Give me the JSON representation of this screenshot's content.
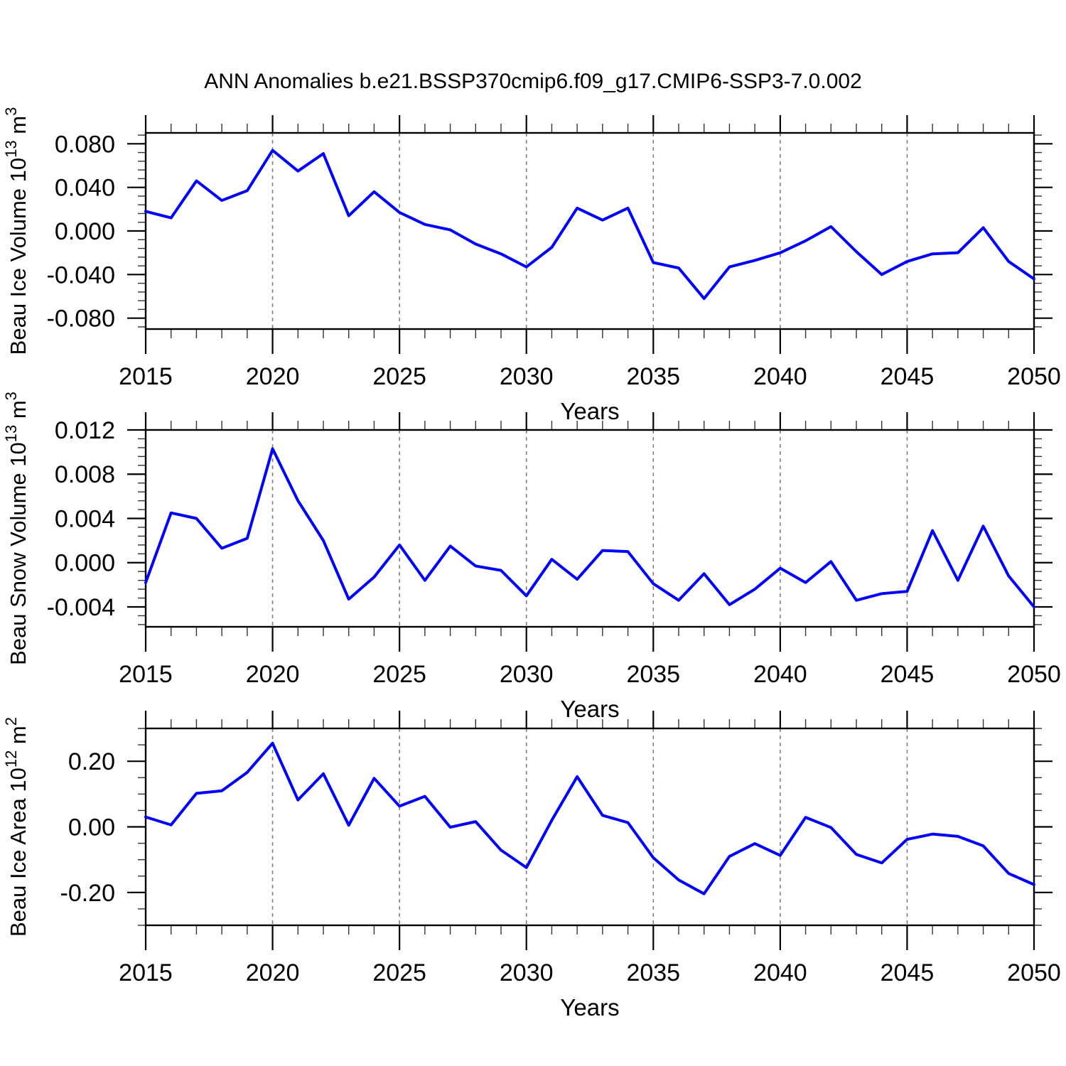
{
  "title": "ANN Anomalies b.e21.BSSP370cmip6.f09_g17.CMIP6-SSP3-7.0.002",
  "colors": {
    "line": "#0000ff",
    "grid": "#7f7f7f",
    "axis": "#000000",
    "minor_tick": "#333333",
    "background": "#ffffff"
  },
  "x_axis": {
    "label": "Years",
    "start": 2015,
    "end": 2050,
    "major_step": 5,
    "minor_step": 1,
    "tick_labels": [
      "2015",
      "2020",
      "2025",
      "2030",
      "2035",
      "2040",
      "2045",
      "2050"
    ],
    "grid_years": [
      2020,
      2025,
      2030,
      2035,
      2040,
      2045
    ]
  },
  "chart_data": [
    {
      "type": "line",
      "name": "ice-volume",
      "ylabel": {
        "text": "Beau Ice Volume",
        "factor": "10",
        "factor_exp": "13",
        "unit": "m",
        "unit_exp": "3"
      },
      "ylabel_display": "Beau Ice Volume 10¹³ m³",
      "xlabel": "Years",
      "ylim": [
        -0.09,
        0.09
      ],
      "y_tick_values": [
        0.08,
        0.04,
        0.0,
        -0.04,
        -0.08
      ],
      "y_tick_labels": [
        "0.080",
        "0.040",
        "0.000",
        "-0.040",
        "-0.080"
      ],
      "y_minor_step": 0.008,
      "grid": "vertical-dashed",
      "legend": "none",
      "years": [
        2015,
        2016,
        2017,
        2018,
        2019,
        2020,
        2021,
        2022,
        2023,
        2024,
        2025,
        2026,
        2027,
        2028,
        2029,
        2030,
        2031,
        2032,
        2033,
        2034,
        2035,
        2036,
        2037,
        2038,
        2039,
        2040,
        2041,
        2042,
        2043,
        2044,
        2045,
        2046,
        2047,
        2048,
        2049,
        2050
      ],
      "values": [
        0.018,
        0.012,
        0.046,
        0.028,
        0.037,
        0.074,
        0.055,
        0.071,
        0.014,
        0.036,
        0.017,
        0.006,
        0.001,
        -0.012,
        -0.021,
        -0.033,
        -0.015,
        0.021,
        0.01,
        0.021,
        -0.029,
        -0.034,
        -0.062,
        -0.033,
        -0.027,
        -0.02,
        -0.009,
        0.004,
        -0.019,
        -0.04,
        -0.028,
        -0.021,
        -0.02,
        0.003,
        -0.028,
        -0.044
      ]
    },
    {
      "type": "line",
      "name": "snow-volume",
      "ylabel": {
        "text": "Beau Snow Volume",
        "factor": "10",
        "factor_exp": "13",
        "unit": "m",
        "unit_exp": "3"
      },
      "ylabel_display": "Beau Snow Volume 10¹³ m³",
      "xlabel": "Years",
      "ylim": [
        -0.0058,
        0.012
      ],
      "y_tick_values": [
        0.012,
        0.008,
        0.004,
        0.0,
        -0.004
      ],
      "y_tick_labels": [
        "0.012",
        "0.008",
        "0.004",
        "0.000",
        "-0.004"
      ],
      "y_minor_step": 0.0008,
      "grid": "vertical-dashed",
      "legend": "none",
      "years": [
        2015,
        2016,
        2017,
        2018,
        2019,
        2020,
        2021,
        2022,
        2023,
        2024,
        2025,
        2026,
        2027,
        2028,
        2029,
        2030,
        2031,
        2032,
        2033,
        2034,
        2035,
        2036,
        2037,
        2038,
        2039,
        2040,
        2041,
        2042,
        2043,
        2044,
        2045,
        2046,
        2047,
        2048,
        2049,
        2050
      ],
      "values": [
        -0.0018,
        0.0045,
        0.004,
        0.0013,
        0.0022,
        0.0103,
        0.0056,
        0.002,
        -0.0033,
        -0.0013,
        0.0016,
        -0.0016,
        0.0015,
        -0.0003,
        -0.0007,
        -0.003,
        0.0003,
        -0.0015,
        0.0011,
        0.001,
        -0.0019,
        -0.0034,
        -0.001,
        -0.0038,
        -0.0024,
        -0.0005,
        -0.0018,
        0.0001,
        -0.0034,
        -0.0028,
        -0.0026,
        0.0029,
        -0.0016,
        0.0033,
        -0.0012,
        -0.004
      ]
    },
    {
      "type": "line",
      "name": "ice-area",
      "ylabel": {
        "text": "Beau Ice Area",
        "factor": "10",
        "factor_exp": "12",
        "unit": "m",
        "unit_exp": "2"
      },
      "ylabel_display": "Beau Ice Area 10¹² m²",
      "xlabel": "Years",
      "ylim": [
        -0.3,
        0.3
      ],
      "y_tick_values": [
        0.2,
        0.0,
        -0.2
      ],
      "y_tick_labels": [
        "0.20",
        "0.00",
        "-0.20"
      ],
      "y_minor_step": 0.05,
      "grid": "vertical-dashed",
      "legend": "none",
      "years": [
        2015,
        2016,
        2017,
        2018,
        2019,
        2020,
        2021,
        2022,
        2023,
        2024,
        2025,
        2026,
        2027,
        2028,
        2029,
        2030,
        2031,
        2032,
        2033,
        2034,
        2035,
        2036,
        2037,
        2038,
        2039,
        2040,
        2041,
        2042,
        2043,
        2044,
        2045,
        2046,
        2047,
        2048,
        2049,
        2050
      ],
      "values": [
        0.03,
        0.006,
        0.102,
        0.11,
        0.166,
        0.255,
        0.082,
        0.162,
        0.005,
        0.148,
        0.063,
        0.093,
        -0.001,
        0.016,
        -0.071,
        -0.124,
        0.02,
        0.153,
        0.035,
        0.013,
        -0.094,
        -0.162,
        -0.204,
        -0.09,
        -0.051,
        -0.087,
        0.029,
        -0.002,
        -0.084,
        -0.11,
        -0.038,
        -0.022,
        -0.029,
        -0.058,
        -0.142,
        -0.176
      ]
    }
  ]
}
